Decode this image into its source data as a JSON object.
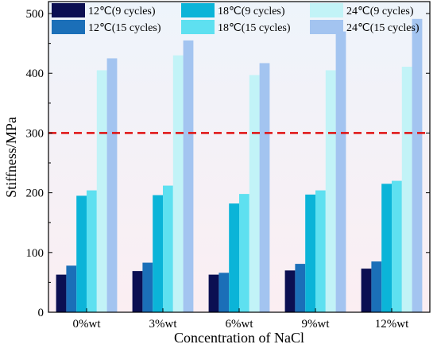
{
  "chart_data": {
    "type": "bar",
    "xlabel": "Concentration of NaCl",
    "ylabel": "Stiffness/MPa",
    "ylim": [
      0,
      520
    ],
    "yticks": [
      0,
      100,
      200,
      300,
      400,
      500
    ],
    "categories": [
      "0%wt",
      "3%wt",
      "6%wt",
      "9%wt",
      "12%wt"
    ],
    "series": [
      {
        "name": "12℃(9 cycles)",
        "color": "#0b0f52",
        "values": [
          63,
          69,
          63,
          70,
          73
        ]
      },
      {
        "name": "12℃(15 cycles)",
        "color": "#1b6fb8",
        "values": [
          78,
          83,
          66,
          81,
          85
        ]
      },
      {
        "name": "18℃(9 cycles)",
        "color": "#0bb4d8",
        "values": [
          195,
          196,
          182,
          197,
          215
        ]
      },
      {
        "name": "18℃(15 cycles)",
        "color": "#5ee0f0",
        "values": [
          204,
          212,
          198,
          204,
          220
        ]
      },
      {
        "name": "24℃(9 cycles)",
        "color": "#c2f3f7",
        "values": [
          405,
          430,
          397,
          405,
          411
        ]
      },
      {
        "name": "24℃(15 cycles)",
        "color": "#a3c4f0",
        "values": [
          425,
          455,
          417,
          470,
          491
        ]
      }
    ],
    "reference_line": {
      "value": 300,
      "color": "#e01010",
      "style": "dashed"
    },
    "background_gradient": [
      "#eef4fb",
      "#fbeef2"
    ],
    "legend": "top, 3 columns",
    "grid": false
  }
}
